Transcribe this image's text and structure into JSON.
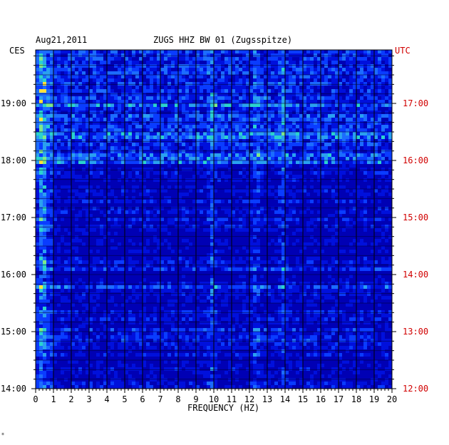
{
  "header": {
    "date": "Aug21,2011",
    "station": "ZUGS HHZ BW 01 (Zugsspitze)",
    "tz_left": "CES",
    "tz_right": "UTC",
    "corner_mark": "⁎"
  },
  "colors": {
    "left_labels": "#000000",
    "right_labels": "#d10000",
    "background_low": "#0000a8",
    "mid": "#1c5cff",
    "high": "#23d7d0",
    "peak": "#ffe23c"
  },
  "chart_data": {
    "type": "heatmap",
    "title": "ZUGS HHZ BW 01 (Zugsspitze)",
    "xlabel": "FREQUENCY (HZ)",
    "xlim": [
      0,
      20
    ],
    "x_ticks": [
      "0",
      "1",
      "2",
      "3",
      "4",
      "5",
      "6",
      "7",
      "8",
      "9",
      "10",
      "11",
      "12",
      "13",
      "14",
      "15",
      "16",
      "17",
      "18",
      "19",
      "20"
    ],
    "y_left_label": "CES",
    "y_left_ticks": [
      "19:00",
      "18:00",
      "17:00",
      "16:00",
      "15:00",
      "14:00"
    ],
    "y_right_label": "UTC",
    "y_right_ticks": [
      "17:00",
      "16:00",
      "15:00",
      "14:00",
      "13:00",
      "12:00"
    ],
    "time_range_utc": [
      "12:00",
      "17:50"
    ],
    "notable_frequencies_hz": [
      0.3,
      9.8,
      12.3,
      13.8
    ],
    "grid": true
  }
}
